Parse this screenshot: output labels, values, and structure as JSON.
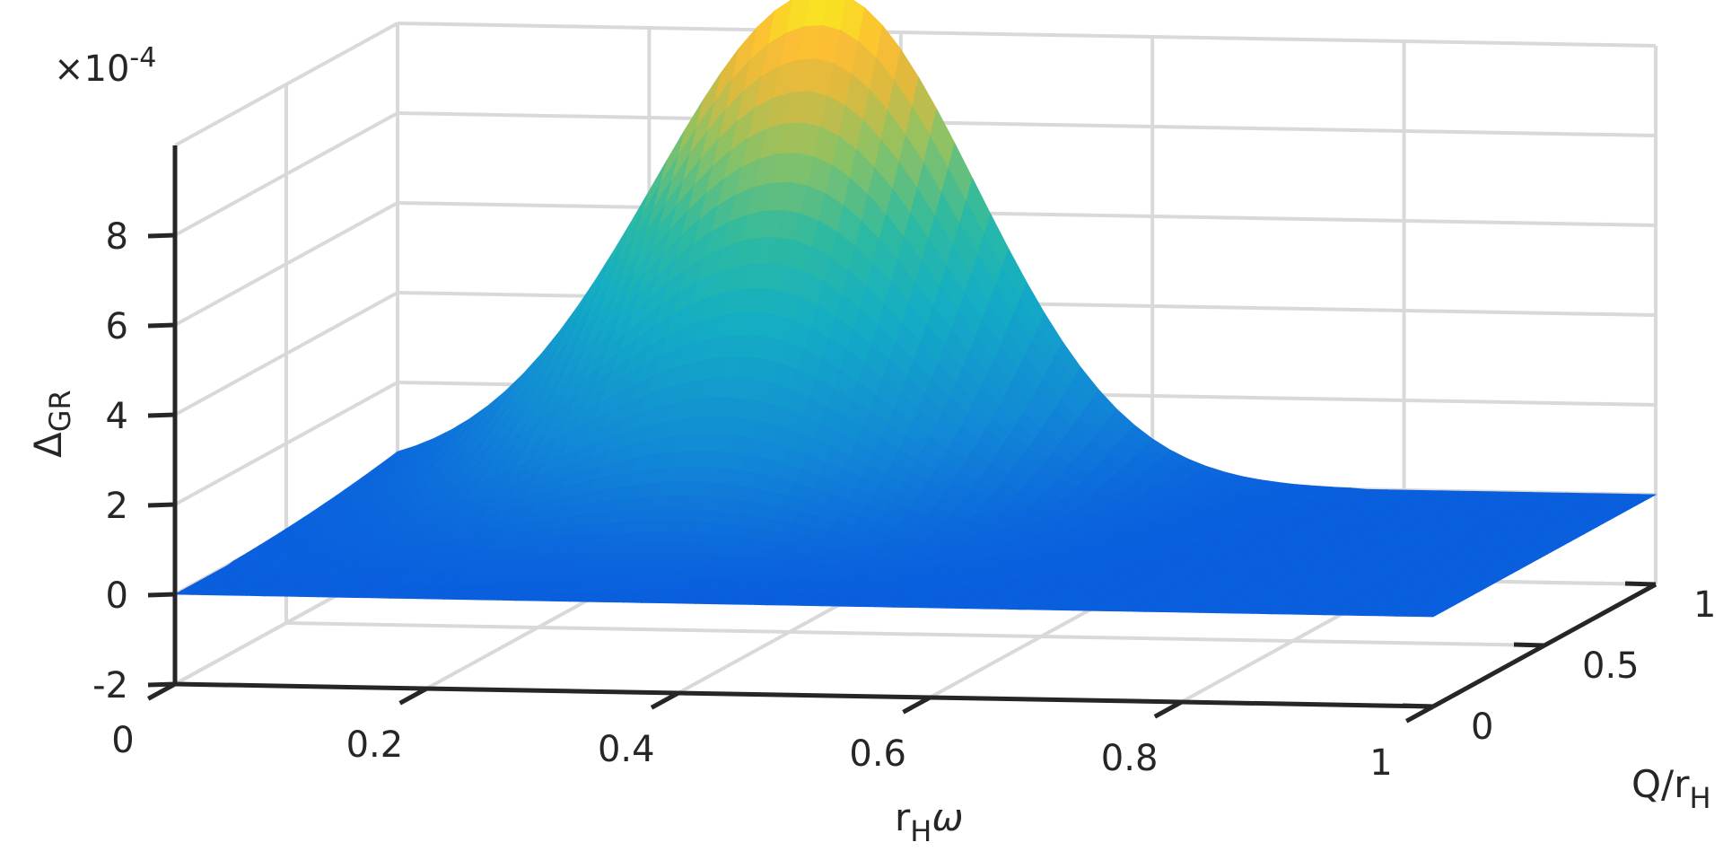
{
  "chart_data": {
    "type": "surface",
    "title": "",
    "xlabel": {
      "base": "r",
      "sub": "H",
      "tail": "ω"
    },
    "ylabel": {
      "base": "Q/r",
      "sub": "H"
    },
    "zlabel": {
      "base": "Δ",
      "sub": "GR"
    },
    "exponent": {
      "prefix": "×10",
      "power": "-4"
    },
    "xlim": [
      0,
      1
    ],
    "ylim": [
      0,
      1
    ],
    "zlim": [
      -2,
      10
    ],
    "x_ticks": [
      0,
      0.2,
      0.4,
      0.6,
      0.8,
      1
    ],
    "x_tick_labels": [
      "0",
      "0.2",
      "0.4",
      "0.6",
      "0.8",
      "1"
    ],
    "y_ticks": [
      0,
      0.5,
      1
    ],
    "y_tick_labels": [
      "0",
      "0.5",
      "1"
    ],
    "z_ticks": [
      -2,
      0,
      2,
      4,
      6,
      8
    ],
    "z_tick_labels": [
      "-2",
      "0",
      "2",
      "4",
      "6",
      "8"
    ],
    "grid": true,
    "colormap": "parula",
    "colors": {
      "low": "#0a5fde",
      "mid": "#14aec4",
      "high": "#f7f21a"
    },
    "peak": {
      "x": 0.34,
      "y": 1.0,
      "z": 10.9
    },
    "peak_profile_at_y1": {
      "x": [
        0.0,
        0.05,
        0.1,
        0.15,
        0.2,
        0.25,
        0.3,
        0.34,
        0.38,
        0.45,
        0.5,
        0.55,
        0.6,
        0.7,
        0.8,
        0.9,
        1.0
      ],
      "z": [
        0.0,
        0.1,
        0.6,
        2.2,
        4.6,
        7.4,
        9.9,
        10.9,
        9.9,
        7.0,
        4.7,
        2.7,
        1.3,
        0.3,
        0.05,
        0.0,
        0.0
      ]
    }
  }
}
